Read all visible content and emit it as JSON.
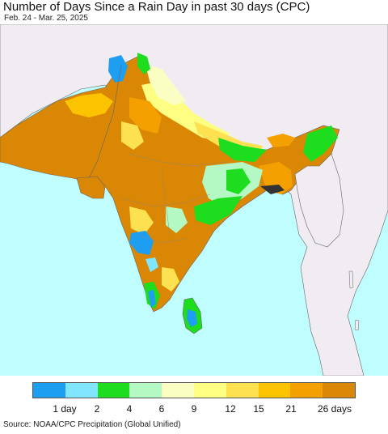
{
  "header": {
    "title": "Number of Days Since a Rain Day in past 30 days (CPC)",
    "subtitle": "Feb. 24 - Mar. 25, 2025"
  },
  "colors": {
    "ocean": "#bffdfe",
    "land_outside": "#f0ecf2",
    "border": "#666666"
  },
  "legend": {
    "colors": [
      "#1e9ef0",
      "#80e6ff",
      "#1edc1e",
      "#b4f9c3",
      "#fbfec2",
      "#fefe82",
      "#fde150",
      "#fcc300",
      "#f4a000",
      "#d98704"
    ],
    "ticks": [
      {
        "label": "1 day"
      },
      {
        "label": "2"
      },
      {
        "label": "4"
      },
      {
        "label": "6"
      },
      {
        "label": "9"
      },
      {
        "label": "12"
      },
      {
        "label": "15"
      },
      {
        "label": "21"
      },
      {
        "label": "26 days"
      }
    ]
  },
  "footer": {
    "source": "Source: NOAA/CPC Precipitation (Global Unified)"
  }
}
